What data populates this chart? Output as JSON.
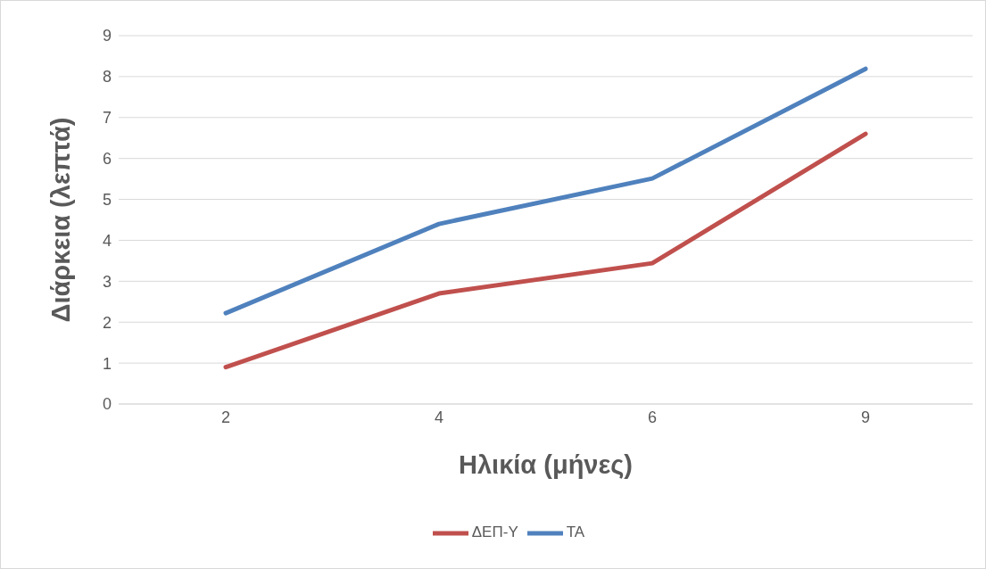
{
  "chart_data": {
    "type": "line",
    "xlabel": "Ηλικία (μήνες)",
    "ylabel": "Διάρκεια (λεπτά)",
    "categories": [
      "2",
      "4",
      "6",
      "9"
    ],
    "ylim": [
      0,
      9
    ],
    "yticks": [
      0,
      1,
      2,
      3,
      4,
      5,
      6,
      7,
      8,
      9
    ],
    "grid": "y",
    "legend": "bottom",
    "marker": "none",
    "series": [
      {
        "name": "ΔΕΠ-Υ",
        "color": "#c0504d",
        "values": [
          0.9,
          2.7,
          3.44,
          6.6
        ]
      },
      {
        "name": "ΤΑ",
        "color": "#4f81bd",
        "values": [
          2.22,
          4.4,
          5.51,
          8.19
        ]
      }
    ]
  }
}
